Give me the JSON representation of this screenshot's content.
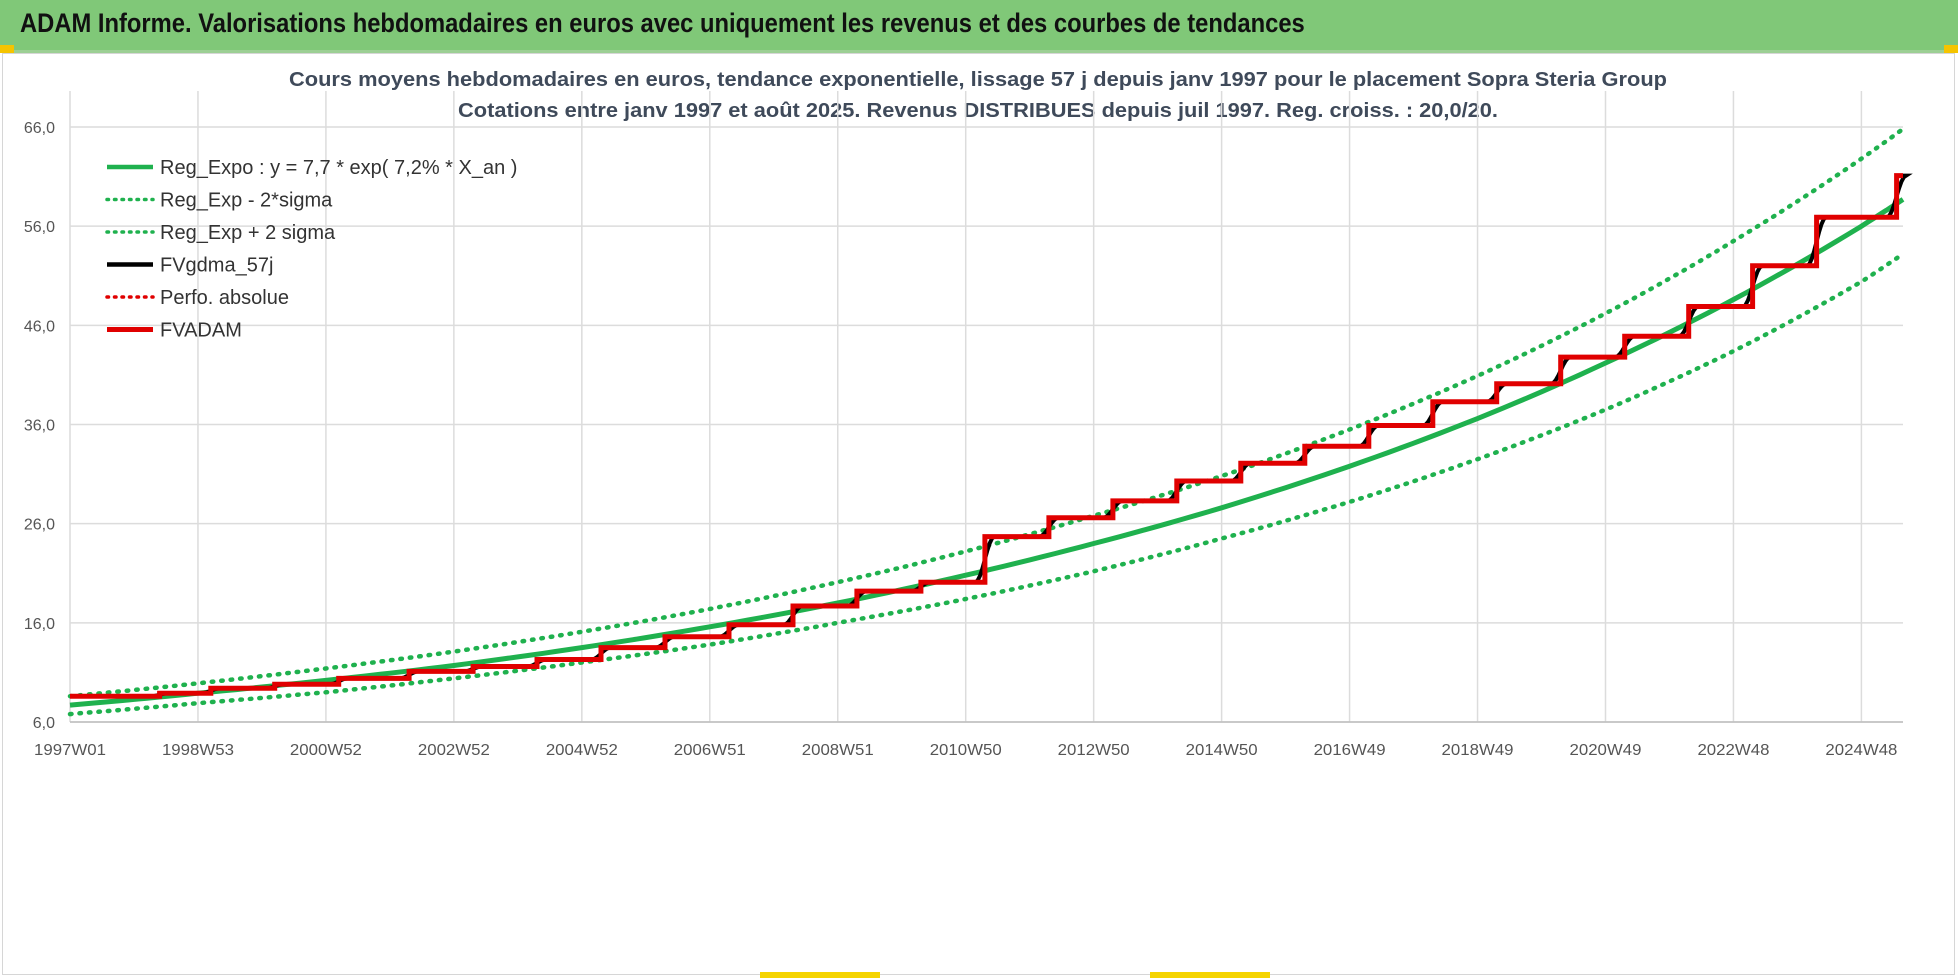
{
  "banner": {
    "title": "ADAM Informe. Valorisations hebdomadaires en euros avec uniquement les revenus et des courbes de tendances"
  },
  "chart_data": {
    "type": "line",
    "title": "Cours moyens hebdomadaires en euros, tendance exponentielle, lissage 57 j depuis janv 1997 pour le placement Sopra Steria Group",
    "subtitle": "Cotations entre janv 1997 et août 2025.  Revenus DISTRIBUES depuis juil 1997.  Reg. croiss. : 20,0/20.",
    "xlabel": "",
    "ylabel": "",
    "ylim": [
      6,
      66
    ],
    "xlim": [
      1997.0,
      2025.65
    ],
    "yticks": [
      "66,0",
      "56,0",
      "46,0",
      "36,0",
      "26,0",
      "16,0",
      "6,0"
    ],
    "ytick_values": [
      66,
      56,
      46,
      36,
      26,
      16,
      6
    ],
    "xticks": [
      "1997W01",
      "1998W53",
      "2000W52",
      "2002W52",
      "2004W52",
      "2006W51",
      "2008W51",
      "2010W50",
      "2012W50",
      "2014W50",
      "2016W49",
      "2018W49",
      "2020W49",
      "2022W48",
      "2024W48"
    ],
    "xtick_values": [
      1997.0,
      1999.0,
      2001.0,
      2003.0,
      2005.0,
      2007.0,
      2009.0,
      2011.0,
      2013.0,
      2015.0,
      2017.0,
      2019.0,
      2021.0,
      2023.0,
      2025.0
    ],
    "grid": true,
    "legend_position": "top-left",
    "colors": {
      "green": "#1fb14e",
      "black": "#000000",
      "red": "#e00000",
      "grid": "#dcdcdc",
      "axis_text": "#555555",
      "title_text": "#3f4a5a"
    },
    "series": [
      {
        "name": "Reg_Expo : y = 7,7 * exp( 7,2% *  X_an )",
        "style": "solid",
        "color": "#1fb14e",
        "x": [
          1997,
          1999,
          2001,
          2003,
          2005,
          2007,
          2009,
          2011,
          2013,
          2015,
          2017,
          2019,
          2021,
          2023,
          2025,
          2025.65
        ],
        "y": [
          7.7,
          8.9,
          10.2,
          11.7,
          13.5,
          15.6,
          18.0,
          20.8,
          24.0,
          27.6,
          31.8,
          36.6,
          42.2,
          48.6,
          56.0,
          58.7
        ]
      },
      {
        "name": "Reg_Exp - 2*sigma",
        "style": "dotted",
        "color": "#1fb14e",
        "x": [
          1997,
          1999,
          2001,
          2003,
          2005,
          2007,
          2009,
          2011,
          2013,
          2015,
          2017,
          2019,
          2021,
          2023,
          2025,
          2025.65
        ],
        "y": [
          6.8,
          7.9,
          9.0,
          10.4,
          12.0,
          13.8,
          16.0,
          18.4,
          21.2,
          24.5,
          28.2,
          32.5,
          37.5,
          43.4,
          50.4,
          53.2
        ]
      },
      {
        "name": "Reg_Exp + 2 sigma",
        "style": "dotted",
        "color": "#1fb14e",
        "x": [
          1997,
          1999,
          2001,
          2003,
          2005,
          2007,
          2009,
          2011,
          2013,
          2015,
          2017,
          2019,
          2021,
          2023,
          2025,
          2025.65
        ],
        "y": [
          8.6,
          9.9,
          11.4,
          13.1,
          15.1,
          17.4,
          20.1,
          23.2,
          26.8,
          30.8,
          35.5,
          40.9,
          47.2,
          54.5,
          62.8,
          65.8
        ]
      },
      {
        "name": "FVgdma_57j",
        "style": "solid",
        "color": "#000000",
        "x": [
          1997,
          2025.65
        ],
        "y": [
          8.6,
          60.7
        ]
      },
      {
        "name": "Perfo. absolue",
        "style": "dotted",
        "color": "#e00000",
        "x": [],
        "y": []
      },
      {
        "name": "FVADAM",
        "style": "solid",
        "color": "#e00000",
        "steps": [
          {
            "x": 1997.0,
            "y": 8.6
          },
          {
            "x": 1998.4,
            "y": 8.9
          },
          {
            "x": 1999.2,
            "y": 9.4
          },
          {
            "x": 2000.2,
            "y": 9.8
          },
          {
            "x": 2001.2,
            "y": 10.4
          },
          {
            "x": 2002.3,
            "y": 11.1
          },
          {
            "x": 2003.3,
            "y": 11.6
          },
          {
            "x": 2004.3,
            "y": 12.3
          },
          {
            "x": 2005.3,
            "y": 13.5
          },
          {
            "x": 2006.3,
            "y": 14.6
          },
          {
            "x": 2007.3,
            "y": 15.8
          },
          {
            "x": 2008.3,
            "y": 17.7
          },
          {
            "x": 2009.3,
            "y": 19.2
          },
          {
            "x": 2010.3,
            "y": 20.1
          },
          {
            "x": 2011.3,
            "y": 24.7
          },
          {
            "x": 2012.3,
            "y": 26.6
          },
          {
            "x": 2013.3,
            "y": 28.3
          },
          {
            "x": 2014.3,
            "y": 30.3
          },
          {
            "x": 2015.3,
            "y": 32.1
          },
          {
            "x": 2016.3,
            "y": 33.8
          },
          {
            "x": 2017.3,
            "y": 35.9
          },
          {
            "x": 2018.3,
            "y": 38.3
          },
          {
            "x": 2019.3,
            "y": 40.1
          },
          {
            "x": 2020.3,
            "y": 42.8
          },
          {
            "x": 2021.3,
            "y": 44.9
          },
          {
            "x": 2022.3,
            "y": 47.9
          },
          {
            "x": 2023.3,
            "y": 52.0
          },
          {
            "x": 2024.3,
            "y": 56.9
          },
          {
            "x": 2025.55,
            "y": 61.1
          }
        ],
        "x_end": 2025.65
      }
    ]
  }
}
